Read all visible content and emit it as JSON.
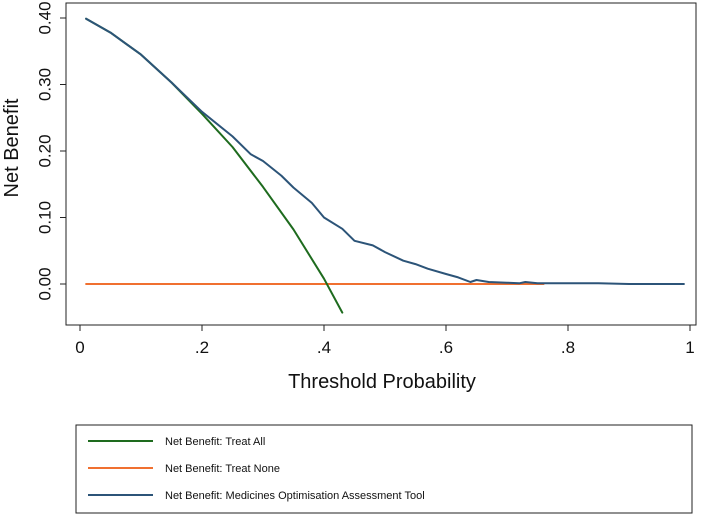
{
  "chart_data": {
    "type": "line",
    "xlabel": "Threshold Probability",
    "ylabel": "Net Benefit",
    "xlim": [
      0,
      1
    ],
    "ylim": [
      -0.06,
      0.405
    ],
    "xticks": [
      {
        "value": 0,
        "label": "0"
      },
      {
        "value": 0.2,
        "label": ".2"
      },
      {
        "value": 0.4,
        "label": ".4"
      },
      {
        "value": 0.6,
        "label": ".6"
      },
      {
        "value": 0.8,
        "label": ".8"
      },
      {
        "value": 1,
        "label": "1"
      }
    ],
    "yticks": [
      {
        "value": 0.0,
        "label": "0.00"
      },
      {
        "value": 0.1,
        "label": "0.10"
      },
      {
        "value": 0.2,
        "label": "0.20"
      },
      {
        "value": 0.3,
        "label": "0.30"
      },
      {
        "value": 0.4,
        "label": "0.40"
      }
    ],
    "grid": false,
    "legend_position": "bottom",
    "series": [
      {
        "name": "Net Benefit: Treat All",
        "color": "#1e6b1e",
        "points": [
          [
            0.01,
            0.399
          ],
          [
            0.05,
            0.378
          ],
          [
            0.1,
            0.345
          ],
          [
            0.15,
            0.303
          ],
          [
            0.2,
            0.256
          ],
          [
            0.25,
            0.206
          ],
          [
            0.3,
            0.146
          ],
          [
            0.35,
            0.082
          ],
          [
            0.4,
            0.008
          ],
          [
            0.43,
            -0.043
          ]
        ]
      },
      {
        "name": "Net Benefit: Treat None",
        "color": "#f07030",
        "points": [
          [
            0.01,
            0.0
          ],
          [
            0.76,
            0.0
          ]
        ]
      },
      {
        "name": "Net Benefit: Medicines Optimisation Assessment Tool",
        "color": "#2c5478",
        "points": [
          [
            0.01,
            0.399
          ],
          [
            0.05,
            0.378
          ],
          [
            0.1,
            0.345
          ],
          [
            0.15,
            0.303
          ],
          [
            0.2,
            0.259
          ],
          [
            0.25,
            0.222
          ],
          [
            0.28,
            0.195
          ],
          [
            0.3,
            0.185
          ],
          [
            0.33,
            0.163
          ],
          [
            0.35,
            0.145
          ],
          [
            0.38,
            0.122
          ],
          [
            0.4,
            0.1
          ],
          [
            0.43,
            0.083
          ],
          [
            0.45,
            0.065
          ],
          [
            0.48,
            0.058
          ],
          [
            0.5,
            0.048
          ],
          [
            0.53,
            0.035
          ],
          [
            0.55,
            0.03
          ],
          [
            0.57,
            0.023
          ],
          [
            0.6,
            0.015
          ],
          [
            0.62,
            0.01
          ],
          [
            0.64,
            0.003
          ],
          [
            0.65,
            0.006
          ],
          [
            0.67,
            0.003
          ],
          [
            0.7,
            0.002
          ],
          [
            0.72,
            0.001
          ],
          [
            0.73,
            0.003
          ],
          [
            0.75,
            0.001
          ],
          [
            0.8,
            0.001
          ],
          [
            0.85,
            0.001
          ],
          [
            0.9,
            0.0
          ],
          [
            0.99,
            0.0
          ]
        ]
      }
    ]
  }
}
